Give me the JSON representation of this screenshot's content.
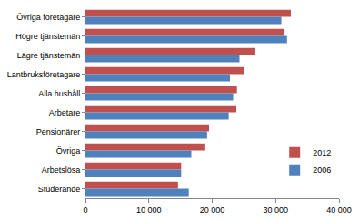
{
  "chart_data": {
    "type": "bar",
    "orientation": "horizontal",
    "categories": [
      "Övriga företagare",
      "Högre tjänstemän",
      "Lägre tjänstemän",
      "Lantbruksföretagare",
      "Alla hushåll",
      "Arbetare",
      "Pensionärer",
      "Övriga",
      "Arbetslösa",
      "Studerande"
    ],
    "series": [
      {
        "name": "2012",
        "color": "#c0504d",
        "values": [
          32400,
          31300,
          26800,
          25000,
          23900,
          23800,
          19500,
          18900,
          15100,
          14600
        ]
      },
      {
        "name": "2006",
        "color": "#4f81bd",
        "values": [
          30900,
          31800,
          24300,
          22800,
          23300,
          22600,
          19200,
          16700,
          15100,
          16300
        ]
      }
    ],
    "xlim": [
      0,
      40000
    ],
    "xticks": [
      0,
      {
        "value": 10000,
        "label": "10 000"
      },
      {
        "value": 20000,
        "label": "20 000"
      },
      {
        "value": 30000,
        "label": "30 000"
      },
      {
        "value": 40000,
        "label": "40 000"
      }
    ],
    "grid": false,
    "legend": "lower right"
  }
}
